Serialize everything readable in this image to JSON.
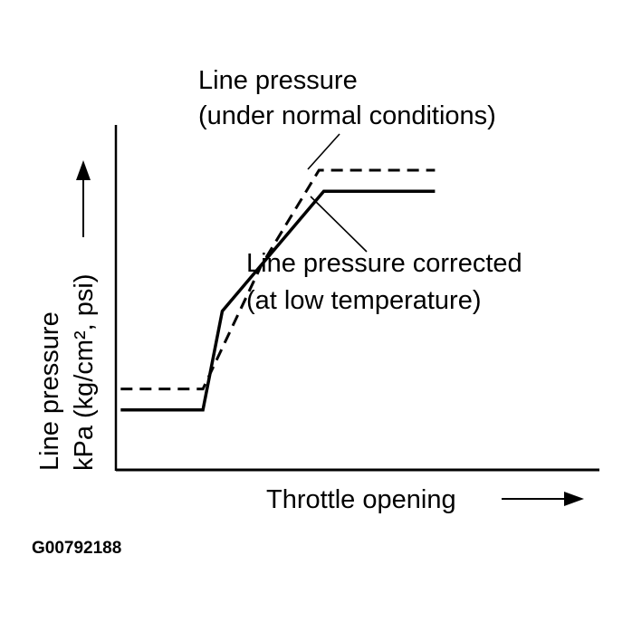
{
  "chart_data": {
    "type": "line",
    "title": "",
    "xlabel": "Throttle opening",
    "ylabel_line1": "Line pressure",
    "ylabel_line2": "kPa (kg/cm², psi)",
    "x_ticks": false,
    "y_ticks": false,
    "grid": false,
    "xlim": [
      0,
      100
    ],
    "ylim": [
      0,
      100
    ],
    "series": [
      {
        "name": "Line pressure (under normal conditions)",
        "label_line1": "Line pressure",
        "label_line2": "(under normal conditions)",
        "style": "dashed",
        "x": [
          1,
          18,
          30,
          42,
          66
        ],
        "y": [
          27,
          27,
          68,
          100,
          100
        ]
      },
      {
        "name": "Line pressure corrected (at low temperature)",
        "label_line1": "Line pressure corrected",
        "label_line2": "(at low temperature)",
        "style": "solid",
        "x": [
          1,
          18,
          22,
          43,
          66
        ],
        "y": [
          20,
          20,
          53,
          93,
          93
        ]
      }
    ]
  },
  "figure_id": "G00792188",
  "colors": {
    "ink": "#000000",
    "background": "#ffffff"
  }
}
